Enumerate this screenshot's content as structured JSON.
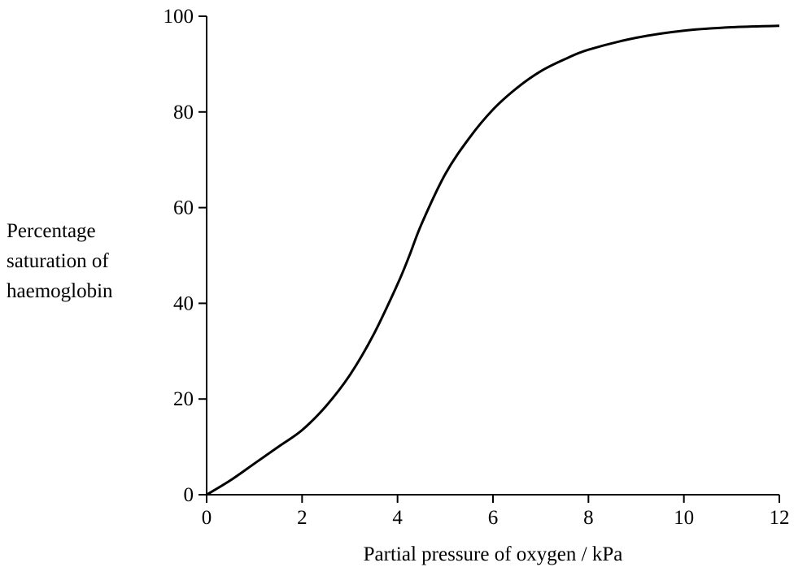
{
  "chart_data": {
    "type": "line",
    "title": "",
    "xlabel": "Partial pressure of oxygen / kPa",
    "ylabel": [
      "Percentage",
      "saturation of",
      "haemoglobin"
    ],
    "xlim": [
      0,
      12
    ],
    "ylim": [
      0,
      100
    ],
    "x_ticks": [
      "0",
      "2",
      "4",
      "6",
      "8",
      "10",
      "12"
    ],
    "y_ticks": [
      "0",
      "20",
      "40",
      "60",
      "80",
      "100"
    ],
    "grid": false,
    "legend": "none",
    "series": [
      {
        "x": [
          0,
          0.5,
          1,
          1.5,
          2,
          2.5,
          3,
          3.5,
          4,
          4.25,
          4.5,
          5,
          5.5,
          6,
          6.5,
          7,
          7.5,
          8,
          9,
          10,
          11,
          12
        ],
        "y": [
          0,
          3,
          6.5,
          10,
          13.5,
          18.5,
          25,
          33.5,
          44,
          50,
          56.5,
          67,
          74.5,
          80.5,
          85,
          88.5,
          91,
          93,
          95.5,
          97,
          97.7,
          98
        ],
        "color": "#000000"
      }
    ]
  }
}
